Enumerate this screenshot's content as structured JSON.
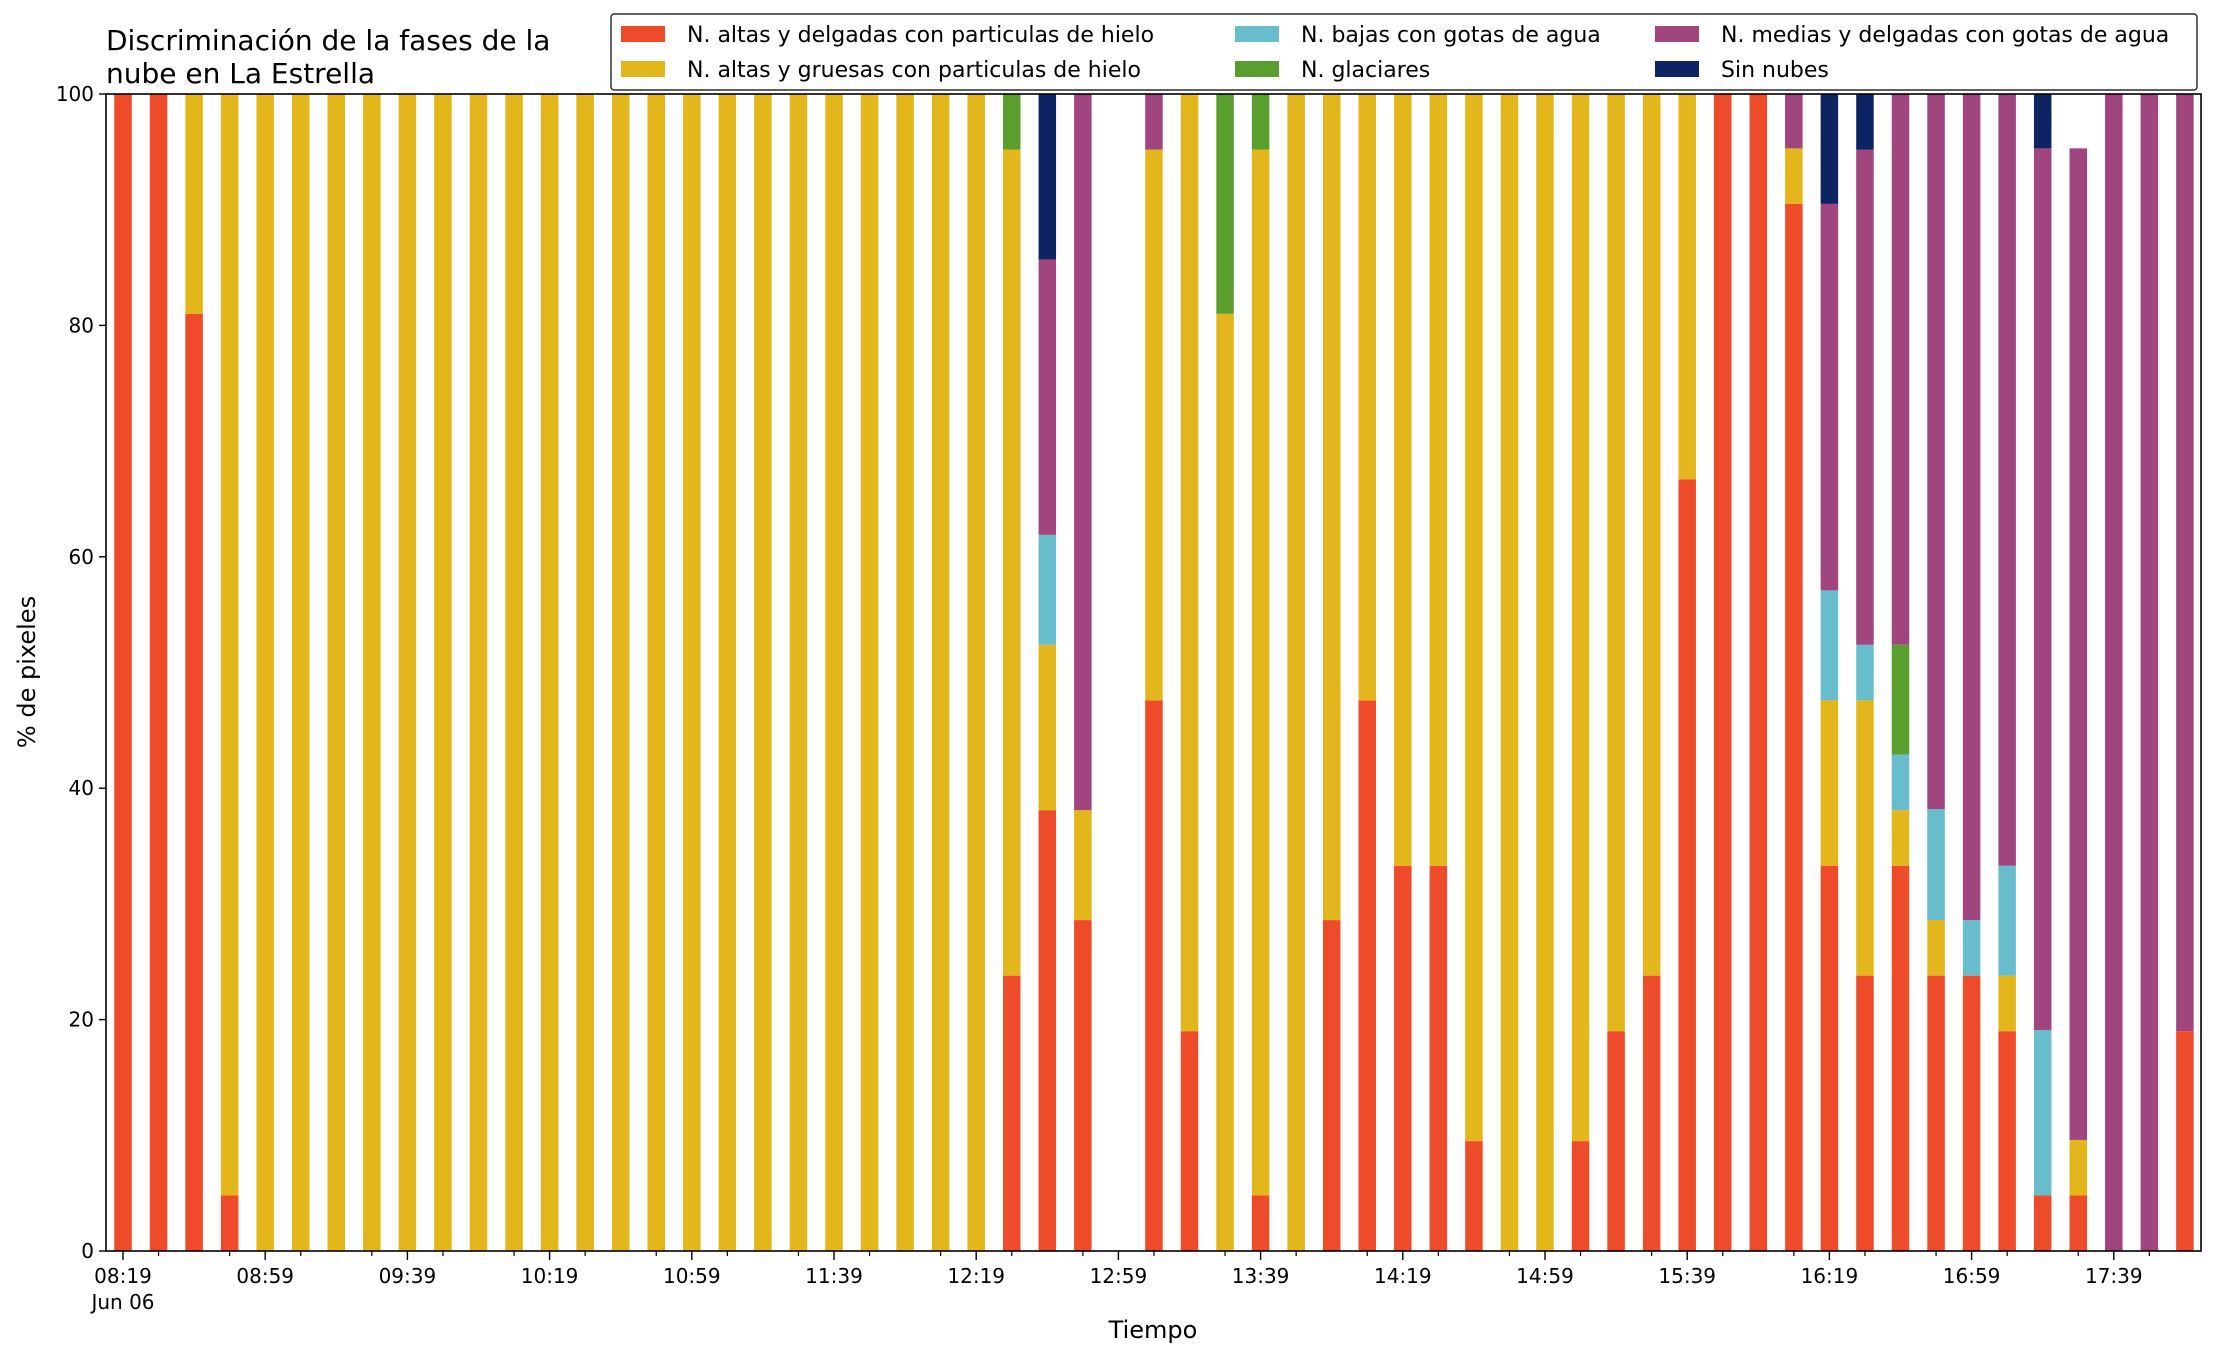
{
  "chart_data": {
    "type": "bar",
    "stacked": true,
    "title_lines": [
      "Discriminación de la fases de la",
      "nube en La Estrella"
    ],
    "xlabel": "Tiempo",
    "ylabel": "% de pixeles",
    "ylim": [
      0,
      100
    ],
    "yticks": [
      0,
      20,
      40,
      60,
      80,
      100
    ],
    "xtick_labels": [
      {
        "index": 0,
        "lines": [
          "08:19",
          "Jun 06"
        ]
      },
      {
        "index": 4,
        "lines": [
          "08:59"
        ]
      },
      {
        "index": 8,
        "lines": [
          "09:39"
        ]
      },
      {
        "index": 12,
        "lines": [
          "10:19"
        ]
      },
      {
        "index": 16,
        "lines": [
          "10:59"
        ]
      },
      {
        "index": 20,
        "lines": [
          "11:39"
        ]
      },
      {
        "index": 24,
        "lines": [
          "12:19"
        ]
      },
      {
        "index": 28,
        "lines": [
          "12:59"
        ]
      },
      {
        "index": 32,
        "lines": [
          "13:39"
        ]
      },
      {
        "index": 36,
        "lines": [
          "14:19"
        ]
      },
      {
        "index": 40,
        "lines": [
          "14:59"
        ]
      },
      {
        "index": 44,
        "lines": [
          "15:39"
        ]
      },
      {
        "index": 48,
        "lines": [
          "16:19"
        ]
      },
      {
        "index": 52,
        "lines": [
          "16:59"
        ]
      },
      {
        "index": 56,
        "lines": [
          "17:39"
        ]
      }
    ],
    "x_interval_minutes": 10,
    "legend_position": "top-right",
    "grid": false,
    "series": [
      {
        "name": "N. altas y delgadas con particulas de hielo",
        "color": "#EE4B2B",
        "values": [
          100,
          100,
          81,
          4.8,
          0,
          0,
          0,
          0,
          0,
          0,
          0,
          0,
          0,
          0,
          0,
          0,
          0,
          0,
          0,
          0,
          0,
          0,
          0,
          0,
          0,
          23.8,
          38.1,
          28.6,
          0,
          47.6,
          19,
          0,
          4.8,
          0,
          28.6,
          47.6,
          33.3,
          33.3,
          9.5,
          0,
          0,
          9.5,
          19,
          23.8,
          66.7,
          100,
          100,
          90.5,
          33.3,
          23.8,
          33.3,
          23.8,
          23.8,
          19,
          4.8,
          4.8,
          0,
          0,
          19
        ]
      },
      {
        "name": "N. altas y gruesas con particulas de hielo",
        "color": "#E3B61B",
        "values": [
          0,
          0,
          19,
          95.2,
          100,
          100,
          100,
          100,
          100,
          100,
          100,
          100,
          100,
          100,
          100,
          100,
          100,
          100,
          100,
          100,
          100,
          100,
          100,
          100,
          100,
          71.4,
          14.3,
          9.5,
          0,
          47.6,
          81,
          81,
          90.4,
          100,
          71.4,
          52.4,
          66.7,
          66.7,
          90.5,
          100,
          100,
          90.5,
          81,
          76.2,
          33.3,
          0,
          0,
          4.8,
          14.3,
          23.8,
          4.8,
          4.8,
          0,
          4.8,
          0,
          4.8,
          0,
          0,
          0
        ]
      },
      {
        "name": "N. bajas con gotas de agua",
        "color": "#67BDCB",
        "values": [
          0,
          0,
          0,
          0,
          0,
          0,
          0,
          0,
          0,
          0,
          0,
          0,
          0,
          0,
          0,
          0,
          0,
          0,
          0,
          0,
          0,
          0,
          0,
          0,
          0,
          0,
          9.5,
          0,
          0,
          0,
          0,
          0,
          0,
          0,
          0,
          0,
          0,
          0,
          0,
          0,
          0,
          0,
          0,
          0,
          0,
          0,
          0,
          0,
          9.5,
          4.8,
          4.8,
          9.6,
          4.8,
          9.5,
          14.3,
          0,
          0,
          0,
          0
        ]
      },
      {
        "name": "N. glaciares",
        "color": "#5A9E2E",
        "values": [
          0,
          0,
          0,
          0,
          0,
          0,
          0,
          0,
          0,
          0,
          0,
          0,
          0,
          0,
          0,
          0,
          0,
          0,
          0,
          0,
          0,
          0,
          0,
          0,
          0,
          4.8,
          0,
          0,
          0,
          0,
          0,
          19,
          4.8,
          0,
          0,
          0,
          0,
          0,
          0,
          0,
          0,
          0,
          0,
          0,
          0,
          0,
          0,
          0,
          0,
          0,
          9.5,
          0,
          0,
          0,
          0,
          0,
          0,
          0,
          0
        ]
      },
      {
        "name": "N. medias y delgadas con gotas de agua",
        "color": "#A0457D",
        "values": [
          0,
          0,
          0,
          0,
          0,
          0,
          0,
          0,
          0,
          0,
          0,
          0,
          0,
          0,
          0,
          0,
          0,
          0,
          0,
          0,
          0,
          0,
          0,
          0,
          0,
          0,
          23.8,
          61.9,
          0,
          4.8,
          0,
          0,
          0,
          0,
          0,
          0,
          0,
          0,
          0,
          0,
          0,
          0,
          0,
          0,
          0,
          0,
          0,
          4.7,
          33.4,
          42.8,
          47.6,
          61.8,
          71.4,
          66.7,
          76.2,
          85.7,
          100,
          100,
          81
        ]
      },
      {
        "name": "Sin nubes",
        "color": "#0D2463",
        "values": [
          0,
          0,
          0,
          0,
          0,
          0,
          0,
          0,
          0,
          0,
          0,
          0,
          0,
          0,
          0,
          0,
          0,
          0,
          0,
          0,
          0,
          0,
          0,
          0,
          0,
          0,
          14.3,
          0,
          0,
          0,
          0,
          0,
          0,
          0,
          0,
          0,
          0,
          0,
          0,
          0,
          0,
          0,
          0,
          0,
          0,
          0,
          0,
          0,
          9.5,
          4.8,
          0,
          0,
          0,
          0,
          4.7,
          0,
          0,
          0,
          0
        ]
      }
    ]
  }
}
